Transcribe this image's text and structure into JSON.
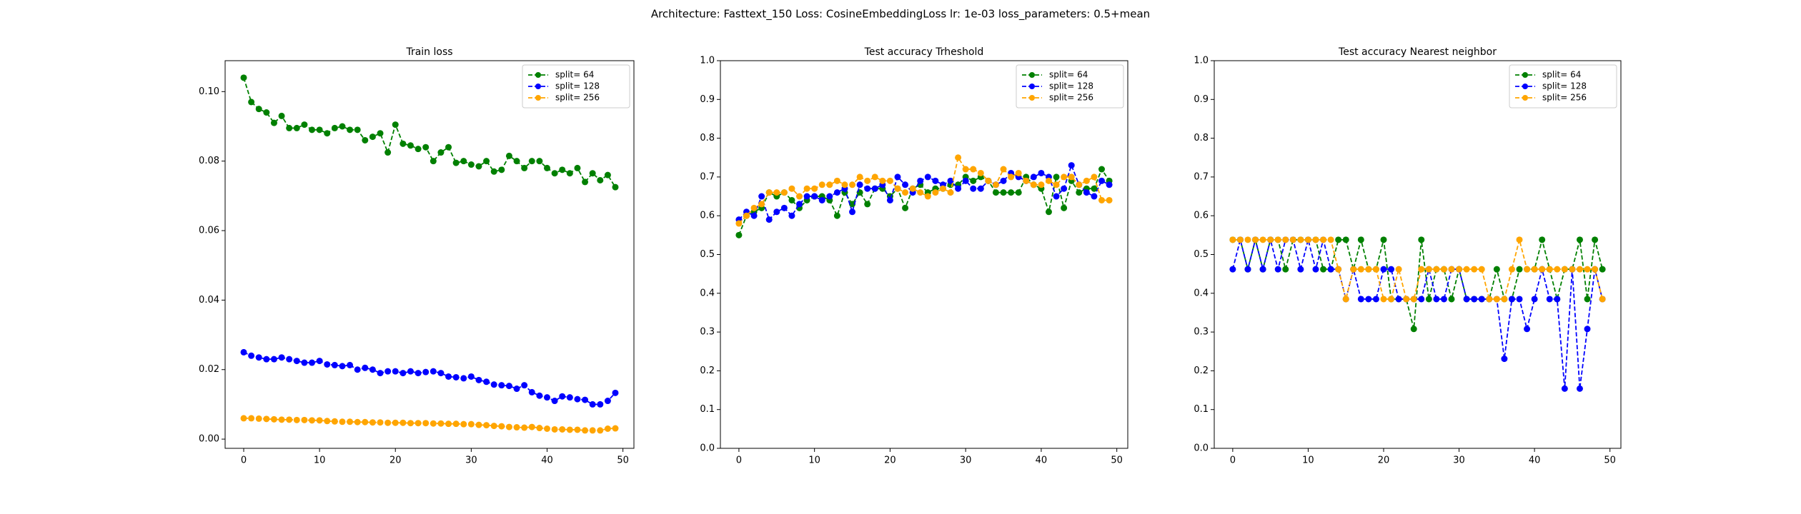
{
  "title": "Architecture: Fasttext_150 Loss: CosineEmbeddingLoss lr: 1e-03 loss_parameters: 0.5+mean",
  "chart_data": [
    {
      "type": "line",
      "title": "Train loss",
      "linestyle": "dashed",
      "marker": "o",
      "legend": "upper right",
      "x": [
        0,
        1,
        2,
        3,
        4,
        5,
        6,
        7,
        8,
        9,
        10,
        11,
        12,
        13,
        14,
        15,
        16,
        17,
        18,
        19,
        20,
        21,
        22,
        23,
        24,
        25,
        26,
        27,
        28,
        29,
        30,
        31,
        32,
        33,
        34,
        35,
        36,
        37,
        38,
        39,
        40,
        41,
        42,
        43,
        44,
        45,
        46,
        47,
        48,
        49
      ],
      "xlim": [
        -2.45,
        51.45
      ],
      "xticks": [
        0,
        10,
        20,
        30,
        40,
        50
      ],
      "ylim": [
        -0.00265,
        0.1089
      ],
      "yticks": [
        {
          "value": 0,
          "label": "0.00"
        },
        0.02,
        0.04,
        0.06,
        0.08,
        {
          "value": 0.1,
          "label": "0.10"
        }
      ],
      "series": [
        {
          "name": "split= 64",
          "color": "green",
          "values": [
            0.104,
            0.097,
            0.095,
            0.094,
            0.091,
            0.093,
            0.0895,
            0.0895,
            0.0905,
            0.089,
            0.089,
            0.088,
            0.0895,
            0.09,
            0.089,
            0.089,
            0.086,
            0.087,
            0.088,
            0.0825,
            0.0905,
            0.085,
            0.0845,
            0.0835,
            0.084,
            0.08,
            0.0825,
            0.084,
            0.0795,
            0.08,
            0.079,
            0.0785,
            0.08,
            0.077,
            0.0775,
            0.0815,
            0.08,
            0.078,
            0.08,
            0.08,
            0.078,
            0.0765,
            0.0775,
            0.0765,
            0.078,
            0.074,
            0.0765,
            0.0745,
            0.076,
            0.0725
          ]
        },
        {
          "name": "split= 128",
          "color": "blue",
          "values": [
            0.025,
            0.024,
            0.0235,
            0.023,
            0.023,
            0.0235,
            0.023,
            0.0225,
            0.022,
            0.022,
            0.0225,
            0.0215,
            0.0213,
            0.021,
            0.0213,
            0.02,
            0.0205,
            0.02,
            0.019,
            0.0195,
            0.0195,
            0.019,
            0.0195,
            0.019,
            0.0193,
            0.0195,
            0.019,
            0.018,
            0.0178,
            0.0175,
            0.018,
            0.017,
            0.0165,
            0.0157,
            0.0155,
            0.0153,
            0.0145,
            0.0155,
            0.0135,
            0.0125,
            0.012,
            0.011,
            0.0123,
            0.012,
            0.0115,
            0.0113,
            0.01,
            0.01,
            0.011,
            0.0133
          ]
        },
        {
          "name": "split= 256",
          "color": "orange",
          "values": [
            0.006,
            0.006,
            0.0059,
            0.0058,
            0.0057,
            0.0056,
            0.0056,
            0.0055,
            0.0055,
            0.0054,
            0.0054,
            0.0052,
            0.0051,
            0.005,
            0.005,
            0.0049,
            0.0049,
            0.0048,
            0.0048,
            0.0047,
            0.0047,
            0.0047,
            0.0046,
            0.0046,
            0.0046,
            0.0045,
            0.0045,
            0.0044,
            0.0044,
            0.0043,
            0.0043,
            0.0041,
            0.004,
            0.0038,
            0.0037,
            0.0035,
            0.0034,
            0.0033,
            0.0035,
            0.0032,
            0.003,
            0.0028,
            0.0028,
            0.0027,
            0.0027,
            0.0025,
            0.0025,
            0.0025,
            0.003,
            0.0031
          ]
        }
      ]
    },
    {
      "type": "line",
      "title": "Test accuracy Trheshold",
      "linestyle": "dashed",
      "marker": "o",
      "legend": "upper right",
      "x": [
        0,
        1,
        2,
        3,
        4,
        5,
        6,
        7,
        8,
        9,
        10,
        11,
        12,
        13,
        14,
        15,
        16,
        17,
        18,
        19,
        20,
        21,
        22,
        23,
        24,
        25,
        26,
        27,
        28,
        29,
        30,
        31,
        32,
        33,
        34,
        35,
        36,
        37,
        38,
        39,
        40,
        41,
        42,
        43,
        44,
        45,
        46,
        47,
        48,
        49
      ],
      "xlim": [
        -2.45,
        51.45
      ],
      "xticks": [
        0,
        10,
        20,
        30,
        40,
        50
      ],
      "ylim": [
        0,
        1
      ],
      "yticks": [
        {
          "value": 0,
          "label": "0.0"
        },
        0.1,
        0.2,
        0.3,
        0.4,
        0.5,
        0.6,
        0.7,
        0.8,
        0.9,
        {
          "value": 1,
          "label": "1.0"
        }
      ],
      "series": [
        {
          "name": "split= 64",
          "color": "green",
          "values": [
            0.55,
            0.6,
            0.61,
            0.62,
            0.66,
            0.65,
            0.66,
            0.64,
            0.62,
            0.64,
            0.65,
            0.65,
            0.64,
            0.6,
            0.66,
            0.63,
            0.66,
            0.63,
            0.67,
            0.67,
            0.65,
            0.67,
            0.62,
            0.67,
            0.68,
            0.66,
            0.67,
            0.67,
            0.68,
            0.68,
            0.7,
            0.69,
            0.7,
            0.69,
            0.66,
            0.66,
            0.66,
            0.66,
            0.7,
            0.68,
            0.67,
            0.61,
            0.7,
            0.62,
            0.69,
            0.66,
            0.67,
            0.67,
            0.72,
            0.69
          ]
        },
        {
          "name": "split= 128",
          "color": "blue",
          "values": [
            0.59,
            0.61,
            0.6,
            0.65,
            0.59,
            0.61,
            0.62,
            0.6,
            0.63,
            0.65,
            0.65,
            0.64,
            0.65,
            0.66,
            0.67,
            0.61,
            0.68,
            0.67,
            0.67,
            0.68,
            0.64,
            0.7,
            0.68,
            0.66,
            0.69,
            0.7,
            0.69,
            0.68,
            0.69,
            0.67,
            0.69,
            0.67,
            0.67,
            0.69,
            0.68,
            0.69,
            0.71,
            0.7,
            0.69,
            0.7,
            0.71,
            0.7,
            0.65,
            0.67,
            0.73,
            0.68,
            0.66,
            0.65,
            0.69,
            0.68
          ]
        },
        {
          "name": "split= 256",
          "color": "orange",
          "values": [
            0.58,
            0.6,
            0.62,
            0.63,
            0.66,
            0.66,
            0.66,
            0.67,
            0.65,
            0.67,
            0.67,
            0.68,
            0.68,
            0.69,
            0.68,
            0.68,
            0.7,
            0.69,
            0.7,
            0.69,
            0.69,
            0.67,
            0.66,
            0.67,
            0.66,
            0.65,
            0.66,
            0.67,
            0.66,
            0.75,
            0.72,
            0.72,
            0.71,
            0.69,
            0.68,
            0.72,
            0.7,
            0.71,
            0.69,
            0.68,
            0.68,
            0.69,
            0.68,
            0.7,
            0.7,
            0.68,
            0.69,
            0.7,
            0.64,
            0.64
          ]
        }
      ]
    },
    {
      "type": "line",
      "title": "Test accuracy Nearest neighbor",
      "linestyle": "dashed",
      "marker": "o",
      "legend": "upper right",
      "x": [
        0,
        1,
        2,
        3,
        4,
        5,
        6,
        7,
        8,
        9,
        10,
        11,
        12,
        13,
        14,
        15,
        16,
        17,
        18,
        19,
        20,
        21,
        22,
        23,
        24,
        25,
        26,
        27,
        28,
        29,
        30,
        31,
        32,
        33,
        34,
        35,
        36,
        37,
        38,
        39,
        40,
        41,
        42,
        43,
        44,
        45,
        46,
        47,
        48,
        49
      ],
      "xlim": [
        -2.45,
        51.45
      ],
      "xticks": [
        0,
        10,
        20,
        30,
        40,
        50
      ],
      "ylim": [
        0,
        1
      ],
      "yticks": [
        {
          "value": 0,
          "label": "0.0"
        },
        0.1,
        0.2,
        0.3,
        0.4,
        0.5,
        0.6,
        0.7,
        0.8,
        0.9,
        {
          "value": 1,
          "label": "1.0"
        }
      ],
      "series": [
        {
          "name": "split= 64",
          "color": "green",
          "values": [
            0.538,
            0.538,
            0.462,
            0.538,
            0.462,
            0.538,
            0.538,
            0.462,
            0.538,
            0.538,
            0.538,
            0.538,
            0.462,
            0.462,
            0.538,
            0.538,
            0.462,
            0.538,
            0.462,
            0.462,
            0.538,
            0.385,
            0.385,
            0.385,
            0.308,
            0.538,
            0.385,
            0.462,
            0.462,
            0.385,
            0.462,
            0.385,
            0.385,
            0.385,
            0.385,
            0.462,
            0.385,
            0.385,
            0.462,
            0.462,
            0.462,
            0.538,
            0.462,
            0.385,
            0.462,
            0.462,
            0.538,
            0.385,
            0.538,
            0.462
          ]
        },
        {
          "name": "split= 128",
          "color": "blue",
          "values": [
            0.462,
            0.538,
            0.462,
            0.538,
            0.462,
            0.538,
            0.462,
            0.538,
            0.538,
            0.462,
            0.538,
            0.462,
            0.538,
            0.462,
            0.462,
            0.385,
            0.462,
            0.385,
            0.385,
            0.385,
            0.462,
            0.462,
            0.385,
            0.385,
            0.385,
            0.385,
            0.462,
            0.385,
            0.385,
            0.462,
            0.462,
            0.385,
            0.385,
            0.385,
            0.385,
            0.385,
            0.231,
            0.385,
            0.385,
            0.308,
            0.385,
            0.462,
            0.385,
            0.385,
            0.154,
            0.462,
            0.154,
            0.308,
            0.462,
            0.385
          ]
        },
        {
          "name": "split= 256",
          "color": "orange",
          "values": [
            0.538,
            0.538,
            0.538,
            0.538,
            0.538,
            0.538,
            0.538,
            0.538,
            0.538,
            0.538,
            0.538,
            0.538,
            0.538,
            0.538,
            0.462,
            0.385,
            0.462,
            0.462,
            0.462,
            0.462,
            0.385,
            0.385,
            0.462,
            0.385,
            0.385,
            0.462,
            0.462,
            0.462,
            0.462,
            0.462,
            0.462,
            0.462,
            0.462,
            0.462,
            0.385,
            0.385,
            0.385,
            0.462,
            0.538,
            0.462,
            0.462,
            0.462,
            0.462,
            0.462,
            0.462,
            0.462,
            0.462,
            0.462,
            0.462,
            0.385
          ]
        }
      ]
    }
  ]
}
